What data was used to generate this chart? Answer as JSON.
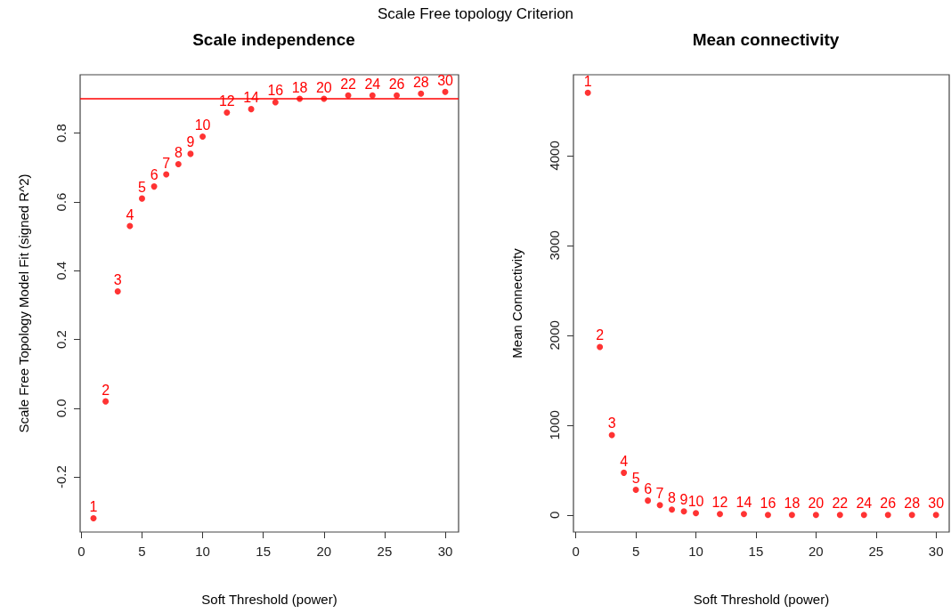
{
  "chart_data": [
    {
      "type": "scatter",
      "title": "Scale independence",
      "xlabel": "Soft Threshold (power)",
      "ylabel": "Scale Free Topology Model Fit (signed R^2)",
      "annotations": [
        "Scale Free topology Criterion",
        {
          "text": "1",
          "x": 1,
          "y": -0.32
        },
        {
          "text": "2",
          "x": 2,
          "y": 0.02
        },
        {
          "text": "3",
          "x": 3,
          "y": 0.34
        },
        {
          "text": "4",
          "x": 4,
          "y": 0.53
        },
        {
          "text": "5",
          "x": 5,
          "y": 0.61
        },
        {
          "text": "6",
          "x": 6,
          "y": 0.645
        },
        {
          "text": "7",
          "x": 7,
          "y": 0.68
        },
        {
          "text": "8",
          "x": 8,
          "y": 0.71
        },
        {
          "text": "9",
          "x": 9,
          "y": 0.74
        },
        {
          "text": "10",
          "x": 10,
          "y": 0.79
        },
        {
          "text": "12",
          "x": 12,
          "y": 0.86
        },
        {
          "text": "14",
          "x": 14,
          "y": 0.87
        },
        {
          "text": "16",
          "x": 16,
          "y": 0.89
        },
        {
          "text": "18",
          "x": 18,
          "y": 0.9
        },
        {
          "text": "20",
          "x": 20,
          "y": 0.9
        },
        {
          "text": "22",
          "x": 22,
          "y": 0.91
        },
        {
          "text": "24",
          "x": 24,
          "y": 0.91
        },
        {
          "text": "26",
          "x": 26,
          "y": 0.91
        },
        {
          "text": "28",
          "x": 28,
          "y": 0.915
        },
        {
          "text": "30",
          "x": 30,
          "y": 0.92
        }
      ],
      "x": [
        1,
        2,
        3,
        4,
        5,
        6,
        7,
        8,
        9,
        10,
        12,
        14,
        16,
        18,
        20,
        22,
        24,
        26,
        28,
        30
      ],
      "series": [
        {
          "color": "#ff0000",
          "values": [
            -0.32,
            0.02,
            0.34,
            0.53,
            0.61,
            0.645,
            0.68,
            0.71,
            0.74,
            0.79,
            0.86,
            0.87,
            0.89,
            0.9,
            0.9,
            0.91,
            0.91,
            0.91,
            0.915,
            0.92
          ]
        }
      ],
      "xlim": [
        -0.1,
        31.1
      ],
      "xticks": [
        0,
        5,
        10,
        15,
        20,
        25,
        30
      ],
      "ylim": [
        -0.36,
        0.97
      ],
      "yticks": [
        -0.2,
        {
          "value": 0,
          "label": "0.0"
        },
        0.2,
        0.4,
        0.6,
        0.8
      ],
      "ref_lines": [
        {
          "axis": "y",
          "value": 0.9,
          "color": "#ff0000"
        }
      ],
      "grid": false
    },
    {
      "type": "scatter",
      "title": "Mean connectivity",
      "xlabel": "Soft Threshold (power)",
      "ylabel": "Mean Connectivity",
      "annotations": [
        {
          "text": "1",
          "x": 1,
          "y": 4700
        },
        {
          "text": "2",
          "x": 2,
          "y": 1870
        },
        {
          "text": "3",
          "x": 3,
          "y": 890
        },
        {
          "text": "4",
          "x": 4,
          "y": 470
        },
        {
          "text": "5",
          "x": 5,
          "y": 280
        },
        {
          "text": "6",
          "x": 6,
          "y": 160
        },
        {
          "text": "7",
          "x": 7,
          "y": 110
        },
        {
          "text": "8",
          "x": 8,
          "y": 60
        },
        {
          "text": "9",
          "x": 9,
          "y": 40
        },
        {
          "text": "10",
          "x": 10,
          "y": 20
        },
        {
          "text": "12",
          "x": 12,
          "y": 10
        },
        {
          "text": "14",
          "x": 14,
          "y": 10
        },
        {
          "text": "16",
          "x": 16,
          "y": 0
        },
        {
          "text": "18",
          "x": 18,
          "y": 0
        },
        {
          "text": "20",
          "x": 20,
          "y": 0
        },
        {
          "text": "22",
          "x": 22,
          "y": 0
        },
        {
          "text": "24",
          "x": 24,
          "y": 0
        },
        {
          "text": "26",
          "x": 26,
          "y": 0
        },
        {
          "text": "28",
          "x": 28,
          "y": 0
        },
        {
          "text": "30",
          "x": 30,
          "y": 0
        }
      ],
      "x": [
        1,
        2,
        3,
        4,
        5,
        6,
        7,
        8,
        9,
        10,
        12,
        14,
        16,
        18,
        20,
        22,
        24,
        26,
        28,
        30
      ],
      "series": [
        {
          "color": "#ff0000",
          "values": [
            4700,
            1870,
            890,
            470,
            280,
            160,
            110,
            60,
            40,
            20,
            10,
            10,
            0,
            0,
            0,
            0,
            0,
            0,
            0,
            0
          ]
        }
      ],
      "xlim": [
        -0.2,
        31.1
      ],
      "xticks": [
        0,
        5,
        10,
        15,
        20,
        25,
        30
      ],
      "ylim": [
        -190,
        4900
      ],
      "yticks": [
        0,
        1000,
        2000,
        3000,
        4000
      ],
      "grid": false
    }
  ]
}
